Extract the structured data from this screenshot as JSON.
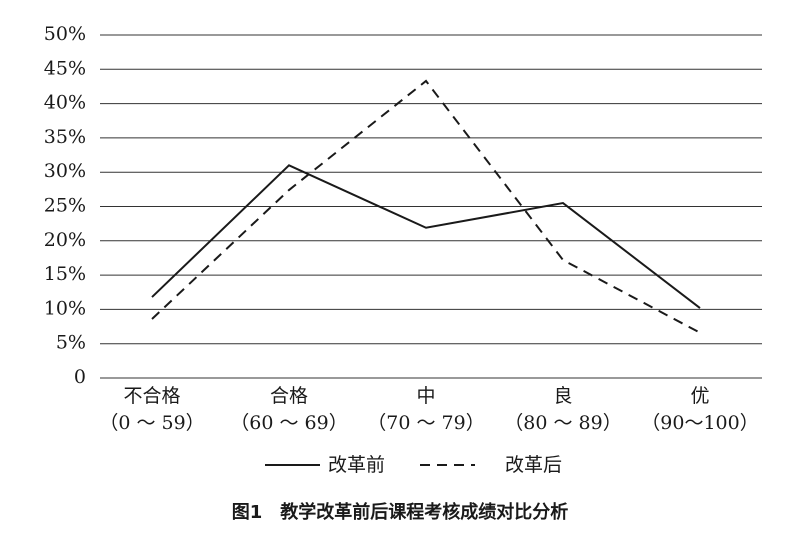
{
  "chart_data": {
    "type": "line",
    "caption": "图1　教学改革前后课程考核成绩对比分析",
    "categories": [
      "不合格",
      "合格",
      "中",
      "良",
      "优"
    ],
    "category_ranges": [
      "（0 ～ 59）",
      "（60 ～ 69）",
      "（70 ～ 79）",
      "（80 ～ 89）",
      "（90～100）"
    ],
    "series": [
      {
        "name": "改革前",
        "color": "#1a1a1a",
        "dash": "solid",
        "values": [
          11.8,
          31.0,
          21.9,
          25.5,
          10.2
        ]
      },
      {
        "name": "改革后",
        "color": "#1a1a1a",
        "dash": "dashed",
        "values": [
          8.6,
          27.4,
          43.3,
          17.2,
          6.6
        ]
      }
    ],
    "ylim": [
      0,
      50
    ],
    "yticks": [
      0,
      {
        "value": 5,
        "label": "5%"
      },
      {
        "value": 10,
        "label": "10%"
      },
      {
        "value": 15,
        "label": "15%"
      },
      {
        "value": 20,
        "label": "20%"
      },
      {
        "value": 25,
        "label": "25%"
      },
      {
        "value": 30,
        "label": "30%"
      },
      {
        "value": 35,
        "label": "35%"
      },
      {
        "value": 40,
        "label": "40%"
      },
      {
        "value": 45,
        "label": "45%"
      },
      {
        "value": 50,
        "label": "50%"
      }
    ],
    "grid": true,
    "legend": "bottom"
  }
}
